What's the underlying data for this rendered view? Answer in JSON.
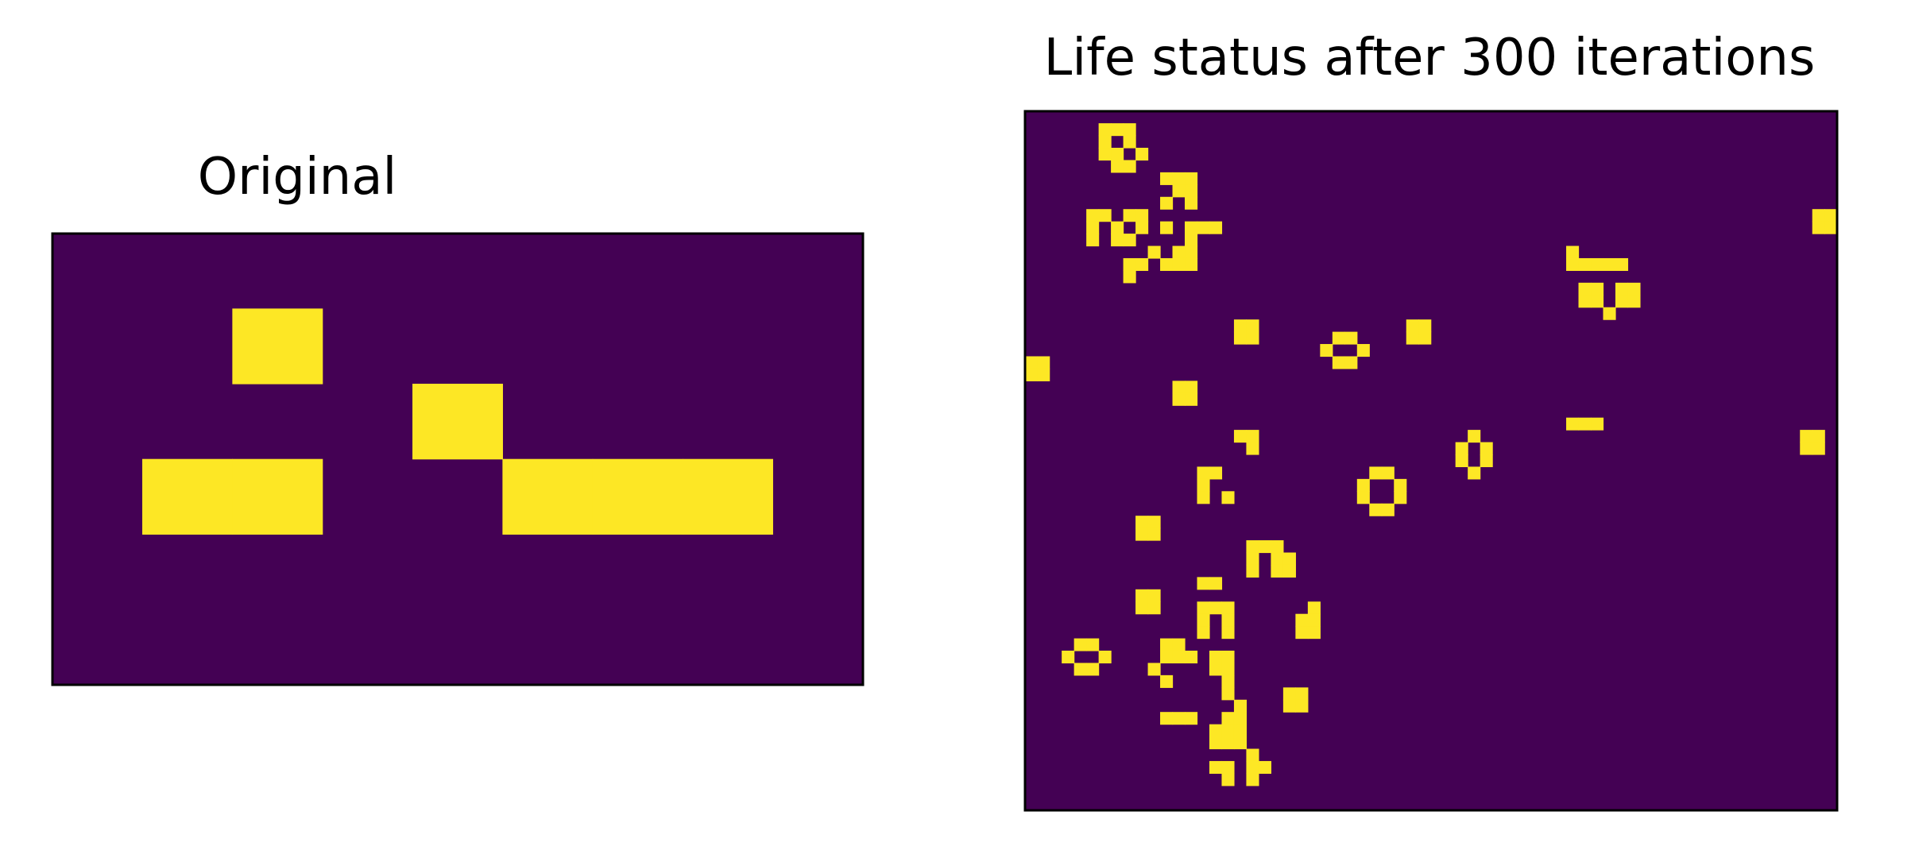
{
  "colors": {
    "dead": "#440154",
    "alive": "#fde725",
    "frame": "#000000",
    "background": "#ffffff"
  },
  "chart_data": [
    {
      "type": "heatmap",
      "title": "Original",
      "rows": 6,
      "cols": 9,
      "xticks": [],
      "yticks": [],
      "values": [
        [
          0,
          0,
          0,
          0,
          0,
          0,
          0,
          0,
          0
        ],
        [
          0,
          0,
          1,
          0,
          0,
          0,
          0,
          0,
          0
        ],
        [
          0,
          0,
          0,
          0,
          1,
          0,
          0,
          0,
          0
        ],
        [
          0,
          1,
          1,
          0,
          0,
          1,
          1,
          1,
          0
        ],
        [
          0,
          0,
          0,
          0,
          0,
          0,
          0,
          0,
          0
        ],
        [
          0,
          0,
          0,
          0,
          0,
          0,
          0,
          0,
          0
        ]
      ]
    },
    {
      "type": "heatmap",
      "title": "Life status after 300 iterations",
      "rows": 57,
      "cols": 66,
      "xticks": [],
      "yticks": [],
      "alive_cells": [
        [
          1,
          6
        ],
        [
          1,
          7
        ],
        [
          1,
          8
        ],
        [
          2,
          6
        ],
        [
          2,
          8
        ],
        [
          3,
          6
        ],
        [
          3,
          7
        ],
        [
          3,
          9
        ],
        [
          4,
          7
        ],
        [
          4,
          8
        ],
        [
          5,
          11
        ],
        [
          5,
          12
        ],
        [
          5,
          13
        ],
        [
          6,
          12
        ],
        [
          6,
          13
        ],
        [
          7,
          11
        ],
        [
          7,
          13
        ],
        [
          8,
          5
        ],
        [
          8,
          6
        ],
        [
          8,
          8
        ],
        [
          8,
          9
        ],
        [
          8,
          64
        ],
        [
          8,
          65
        ],
        [
          9,
          5
        ],
        [
          9,
          7
        ],
        [
          9,
          9
        ],
        [
          9,
          11
        ],
        [
          9,
          13
        ],
        [
          9,
          14
        ],
        [
          9,
          15
        ],
        [
          9,
          64
        ],
        [
          9,
          65
        ],
        [
          10,
          5
        ],
        [
          10,
          7
        ],
        [
          10,
          8
        ],
        [
          10,
          13
        ],
        [
          11,
          10
        ],
        [
          11,
          12
        ],
        [
          11,
          13
        ],
        [
          11,
          44
        ],
        [
          12,
          8
        ],
        [
          12,
          9
        ],
        [
          12,
          11
        ],
        [
          12,
          12
        ],
        [
          12,
          13
        ],
        [
          12,
          44
        ],
        [
          12,
          45
        ],
        [
          12,
          46
        ],
        [
          12,
          47
        ],
        [
          12,
          48
        ],
        [
          13,
          8
        ],
        [
          14,
          45
        ],
        [
          14,
          46
        ],
        [
          14,
          48
        ],
        [
          14,
          49
        ],
        [
          15,
          45
        ],
        [
          15,
          46
        ],
        [
          15,
          48
        ],
        [
          15,
          49
        ],
        [
          16,
          47
        ],
        [
          17,
          17
        ],
        [
          17,
          18
        ],
        [
          17,
          31
        ],
        [
          17,
          32
        ],
        [
          17,
          31
        ],
        [
          17,
          32
        ],
        [
          18,
          17
        ],
        [
          18,
          18
        ],
        [
          18,
          25
        ],
        [
          18,
          26
        ],
        [
          18,
          31
        ],
        [
          18,
          32
        ],
        [
          19,
          24
        ],
        [
          19,
          27
        ],
        [
          20,
          0
        ],
        [
          20,
          1
        ],
        [
          20,
          25
        ],
        [
          20,
          26
        ],
        [
          21,
          0
        ],
        [
          21,
          1
        ],
        [
          22,
          12
        ],
        [
          22,
          13
        ],
        [
          23,
          12
        ],
        [
          23,
          13
        ],
        [
          25,
          44
        ],
        [
          25,
          45
        ],
        [
          25,
          46
        ],
        [
          26,
          17
        ],
        [
          26,
          18
        ],
        [
          26,
          36
        ],
        [
          26,
          63
        ],
        [
          26,
          64
        ],
        [
          27,
          18
        ],
        [
          27,
          35
        ],
        [
          27,
          37
        ],
        [
          27,
          63
        ],
        [
          27,
          64
        ],
        [
          28,
          35
        ],
        [
          28,
          37
        ],
        [
          29,
          14
        ],
        [
          29,
          15
        ],
        [
          29,
          28
        ],
        [
          29,
          29
        ],
        [
          29,
          36
        ],
        [
          30,
          14
        ],
        [
          30,
          27
        ],
        [
          30,
          30
        ],
        [
          31,
          14
        ],
        [
          31,
          16
        ],
        [
          31,
          27
        ],
        [
          31,
          30
        ],
        [
          32,
          28
        ],
        [
          32,
          29
        ],
        [
          33,
          9
        ],
        [
          33,
          10
        ],
        [
          34,
          9
        ],
        [
          34,
          10
        ],
        [
          35,
          18
        ],
        [
          35,
          19
        ],
        [
          35,
          20
        ],
        [
          36,
          18
        ],
        [
          36,
          20
        ],
        [
          36,
          21
        ],
        [
          37,
          18
        ],
        [
          37,
          20
        ],
        [
          37,
          21
        ],
        [
          38,
          14
        ],
        [
          38,
          15
        ],
        [
          39,
          9
        ],
        [
          39,
          10
        ],
        [
          40,
          9
        ],
        [
          40,
          10
        ],
        [
          40,
          14
        ],
        [
          40,
          15
        ],
        [
          40,
          16
        ],
        [
          40,
          23
        ],
        [
          41,
          14
        ],
        [
          41,
          16
        ],
        [
          41,
          22
        ],
        [
          41,
          23
        ],
        [
          42,
          14
        ],
        [
          42,
          16
        ],
        [
          42,
          22
        ],
        [
          42,
          23
        ],
        [
          43,
          4
        ],
        [
          43,
          5
        ],
        [
          43,
          11
        ],
        [
          43,
          12
        ],
        [
          44,
          3
        ],
        [
          44,
          6
        ],
        [
          44,
          11
        ],
        [
          44,
          12
        ],
        [
          44,
          13
        ],
        [
          44,
          15
        ],
        [
          44,
          16
        ],
        [
          45,
          4
        ],
        [
          45,
          5
        ],
        [
          45,
          10
        ],
        [
          45,
          15
        ],
        [
          45,
          16
        ],
        [
          46,
          11
        ],
        [
          46,
          16
        ],
        [
          47,
          16
        ],
        [
          47,
          21
        ],
        [
          47,
          22
        ],
        [
          48,
          17
        ],
        [
          48,
          21
        ],
        [
          48,
          22
        ],
        [
          49,
          11
        ],
        [
          49,
          12
        ],
        [
          49,
          13
        ],
        [
          49,
          16
        ],
        [
          49,
          17
        ],
        [
          50,
          15
        ],
        [
          50,
          16
        ],
        [
          50,
          17
        ],
        [
          51,
          15
        ],
        [
          51,
          16
        ],
        [
          51,
          17
        ],
        [
          52,
          18
        ],
        [
          53,
          15
        ],
        [
          53,
          16
        ],
        [
          53,
          18
        ],
        [
          53,
          19
        ],
        [
          54,
          16
        ],
        [
          54,
          18
        ]
      ]
    }
  ]
}
